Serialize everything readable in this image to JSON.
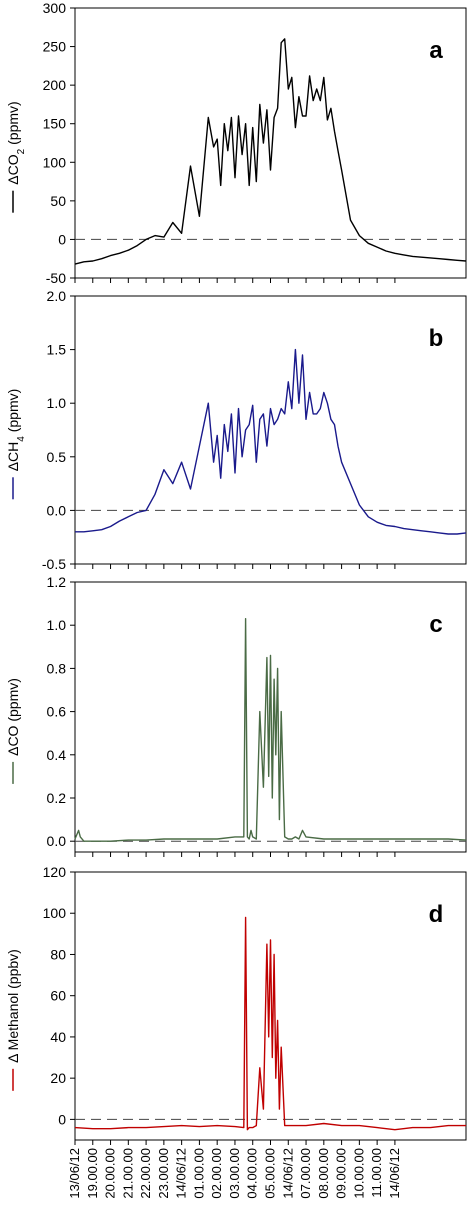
{
  "chart_data": [
    {
      "type": "line",
      "panel_label": "a",
      "ylabel": "ΔCO",
      "ylabel_sub": "2",
      "ylabel_unit": " (ppmv)",
      "ylim": [
        -50,
        300
      ],
      "yticks": [
        -50,
        0,
        50,
        100,
        150,
        200,
        250,
        300
      ],
      "ytick_labels": [
        "-50",
        "0",
        "50",
        "100",
        "150",
        "200",
        "250",
        "300"
      ],
      "reference_line": 0,
      "color": "#000000",
      "series": [
        {
          "x": [
            0,
            0.5,
            1,
            1.5,
            2,
            2.5,
            3,
            3.5,
            4,
            4.5,
            5,
            5.5,
            6,
            6.5,
            7,
            7.5,
            7.8,
            8,
            8.2,
            8.4,
            8.6,
            8.8,
            9,
            9.2,
            9.4,
            9.6,
            9.8,
            10,
            10.2,
            10.4,
            10.6,
            10.8,
            11,
            11.2,
            11.4,
            11.6,
            11.8,
            12,
            12.2,
            12.4,
            12.6,
            12.8,
            13,
            13.2,
            13.4,
            13.6,
            13.8,
            14,
            14.2,
            14.4,
            14.6,
            14.8,
            15,
            15.5,
            16,
            16.5,
            17,
            17.5,
            18,
            18.5,
            19,
            19.5,
            20,
            20.5,
            21,
            21.5,
            22
          ],
          "values": [
            -32,
            -29,
            -28,
            -25,
            -21,
            -18,
            -14,
            -8,
            0,
            5,
            3,
            22,
            8,
            95,
            30,
            158,
            120,
            130,
            70,
            150,
            115,
            158,
            80,
            160,
            110,
            150,
            70,
            145,
            75,
            175,
            125,
            168,
            90,
            158,
            170,
            255,
            260,
            195,
            210,
            145,
            185,
            160,
            160,
            212,
            180,
            195,
            180,
            210,
            155,
            170,
            140,
            115,
            90,
            25,
            5,
            -5,
            -10,
            -15,
            -18,
            -20,
            -22,
            -23,
            -24,
            -25,
            -26,
            -27,
            -28
          ]
        }
      ]
    },
    {
      "type": "line",
      "panel_label": "b",
      "ylabel": "ΔCH",
      "ylabel_sub": "4",
      "ylabel_unit": " (ppmv)",
      "ylim": [
        -0.5,
        2.0
      ],
      "yticks": [
        -0.5,
        0.0,
        0.5,
        1.0,
        1.5,
        2.0
      ],
      "ytick_labels": [
        "-0.5",
        "0.0",
        "0.5",
        "1.0",
        "1.5",
        "2.0"
      ],
      "reference_line": 0,
      "color": "#1a1a8c",
      "series": [
        {
          "x": [
            0,
            0.5,
            1,
            1.5,
            2,
            2.5,
            3,
            3.5,
            4,
            4.5,
            5,
            5.5,
            6,
            6.5,
            7,
            7.5,
            7.8,
            8,
            8.2,
            8.4,
            8.6,
            8.8,
            9,
            9.2,
            9.4,
            9.6,
            9.8,
            10,
            10.2,
            10.4,
            10.6,
            10.8,
            11,
            11.2,
            11.4,
            11.6,
            11.8,
            12,
            12.2,
            12.4,
            12.6,
            12.8,
            13,
            13.2,
            13.4,
            13.6,
            13.8,
            14,
            14.2,
            14.4,
            14.6,
            14.8,
            15,
            15.5,
            16,
            16.5,
            17,
            17.5,
            18,
            18.5,
            19,
            19.5,
            20,
            20.5,
            21,
            21.5,
            22
          ],
          "values": [
            -0.2,
            -0.2,
            -0.19,
            -0.18,
            -0.15,
            -0.1,
            -0.06,
            -0.02,
            0,
            0.15,
            0.38,
            0.25,
            0.45,
            0.2,
            0.6,
            1.0,
            0.45,
            0.7,
            0.3,
            0.8,
            0.55,
            0.9,
            0.35,
            0.95,
            0.5,
            0.75,
            0.8,
            0.98,
            0.45,
            0.85,
            0.9,
            0.6,
            0.95,
            0.8,
            0.85,
            0.95,
            0.9,
            1.2,
            0.95,
            1.5,
            1.0,
            1.45,
            0.85,
            1.1,
            0.9,
            0.9,
            0.95,
            1.1,
            1.0,
            0.85,
            0.8,
            0.6,
            0.45,
            0.25,
            0.05,
            -0.06,
            -0.11,
            -0.14,
            -0.15,
            -0.17,
            -0.18,
            -0.19,
            -0.2,
            -0.21,
            -0.22,
            -0.22,
            -0.21
          ]
        }
      ]
    },
    {
      "type": "line",
      "panel_label": "c",
      "ylabel": "ΔCO",
      "ylabel_sub": "",
      "ylabel_unit": " (ppmv)",
      "ylim": [
        -0.05,
        1.2
      ],
      "yticks": [
        0.0,
        0.2,
        0.4,
        0.6,
        0.8,
        1.0,
        1.2
      ],
      "ytick_labels": [
        "0.0",
        "0.2",
        "0.4",
        "0.6",
        "0.8",
        "1.0",
        "1.2"
      ],
      "reference_line": 0,
      "color": "#4a6b45",
      "series": [
        {
          "x": [
            0,
            0.2,
            0.3,
            0.5,
            1,
            2,
            3,
            4,
            5,
            6,
            7,
            8,
            9,
            9.5,
            9.6,
            9.7,
            9.8,
            9.9,
            10,
            10.2,
            10.4,
            10.6,
            10.8,
            10.9,
            11,
            11.1,
            11.2,
            11.3,
            11.4,
            11.5,
            11.6,
            11.8,
            12,
            12.2,
            12.4,
            12.6,
            12.8,
            13,
            14,
            15,
            16,
            17,
            18,
            19,
            20,
            21,
            22
          ],
          "values": [
            0.01,
            0.05,
            0.02,
            0.0,
            0.0,
            0.0,
            0.005,
            0.005,
            0.01,
            0.01,
            0.01,
            0.01,
            0.02,
            0.02,
            1.03,
            0.02,
            0.01,
            0.05,
            0.02,
            0.01,
            0.6,
            0.25,
            0.85,
            0.3,
            0.86,
            0.2,
            0.75,
            0.4,
            0.8,
            0.1,
            0.6,
            0.02,
            0.01,
            0.01,
            0.02,
            0.01,
            0.05,
            0.02,
            0.01,
            0.01,
            0.01,
            0.01,
            0.01,
            0.01,
            0.01,
            0.01,
            0.005
          ]
        }
      ]
    },
    {
      "type": "line",
      "panel_label": "d",
      "ylabel": "Δ Methanol",
      "ylabel_sub": "",
      "ylabel_unit": " (ppbv)",
      "ylim": [
        -10,
        120
      ],
      "yticks": [
        0,
        20,
        40,
        60,
        80,
        100,
        120
      ],
      "ytick_labels": [
        "0",
        "20",
        "40",
        "60",
        "80",
        "100",
        "120"
      ],
      "reference_line": 0,
      "color": "#c00000",
      "series": [
        {
          "x": [
            0,
            1,
            2,
            3,
            4,
            5,
            6,
            7,
            8,
            9,
            9.5,
            9.6,
            9.7,
            9.8,
            10,
            10.2,
            10.4,
            10.6,
            10.8,
            10.9,
            11,
            11.1,
            11.2,
            11.3,
            11.4,
            11.5,
            11.6,
            11.8,
            12,
            13,
            14,
            15,
            16,
            17,
            18,
            19,
            20,
            21,
            22
          ],
          "values": [
            -4,
            -4.5,
            -4.5,
            -4,
            -4,
            -3.5,
            -3,
            -3.5,
            -3,
            -3.5,
            -4,
            98,
            -5,
            -4,
            -4,
            -3,
            25,
            5,
            85,
            40,
            87,
            30,
            80,
            20,
            48,
            5,
            35,
            -3,
            -3,
            -3,
            -2,
            -3,
            -3,
            -4,
            -5,
            -4,
            -4,
            -3,
            -3
          ]
        }
      ]
    }
  ],
  "x_axis": {
    "tick_labels": [
      "13/06/12",
      "19.00.00",
      "20.00.00",
      "21.00.00",
      "22.00.00",
      "23.00.00",
      "14/06/12",
      "01.00.00",
      "02.00.00",
      "03.00.00",
      "04.00.00",
      "05.00.00",
      "14/06/12",
      "07.00.00",
      "08.00.00",
      "09.00.00",
      "10.00.00",
      "11.00.00",
      "14/06/12"
    ],
    "tick_positions": [
      0,
      1,
      2,
      3,
      4,
      5,
      6,
      7,
      8,
      9,
      10,
      11,
      12,
      13,
      14,
      15,
      16,
      17,
      18
    ],
    "xlim": [
      0,
      22
    ]
  }
}
